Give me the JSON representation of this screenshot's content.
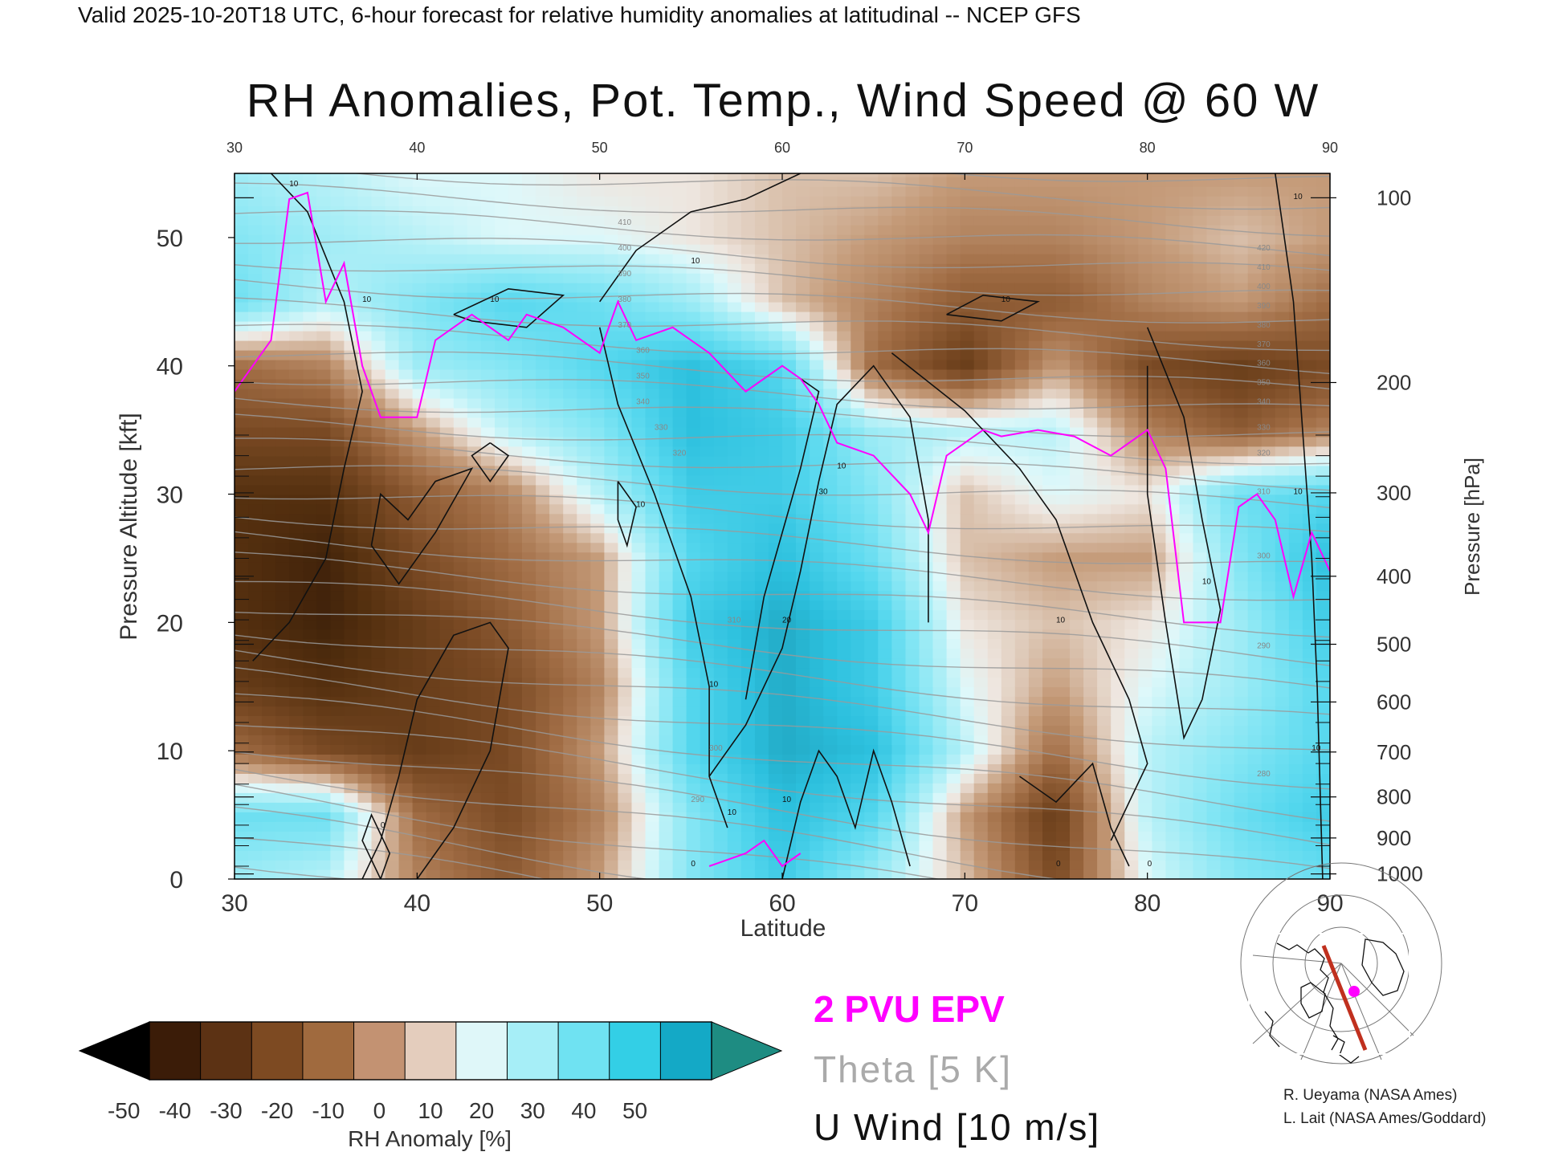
{
  "header": {
    "valid_line": "Valid 2025-10-20T18 UTC, 6-hour forecast for relative humidity anomalies at latitudinal -- NCEP GFS"
  },
  "chart_data": {
    "type": "heatmap",
    "title": "RH Anomalies, Pot. Temp., Wind Speed @ 60 W",
    "xlabel": "Latitude",
    "ylabel_left": "Pressure Altitude [kft]",
    "ylabel_right": "Pressure [hPa]",
    "xlim": [
      30,
      90
    ],
    "ylim": [
      0,
      55
    ],
    "x_ticks_bottom": [
      "30",
      "40",
      "50",
      "60",
      "70",
      "80",
      "90"
    ],
    "x_ticks_top": [
      "30",
      "40",
      "50",
      "60",
      "70",
      "80",
      "90"
    ],
    "y_ticks_left": [
      "0",
      "10",
      "20",
      "30",
      "40",
      "50"
    ],
    "pressure_ticks": [
      {
        "label": "100",
        "kft": 53.1
      },
      {
        "label": "200",
        "kft": 38.7
      },
      {
        "label": "300",
        "kft": 30.1
      },
      {
        "label": "400",
        "kft": 23.6
      },
      {
        "label": "500",
        "kft": 18.3
      },
      {
        "label": "600",
        "kft": 13.8
      },
      {
        "label": "700",
        "kft": 9.9
      },
      {
        "label": "800",
        "kft": 6.4
      },
      {
        "label": "900",
        "kft": 3.2
      },
      {
        "label": "1000",
        "kft": 0.4
      }
    ],
    "colorbar": {
      "label": "RH Anomaly [%]",
      "ticks": [
        "-50",
        "-40",
        "-30",
        "-20",
        "-10",
        "0",
        "10",
        "20",
        "30",
        "40",
        "50"
      ],
      "colors": [
        "#3b1c08",
        "#5c3214",
        "#7d4a22",
        "#a06a3e",
        "#c39272",
        "#e4cdbd",
        "#dff7f9",
        "#a6eef7",
        "#6fe2f2",
        "#33cfe6",
        "#14a9c6"
      ],
      "extend_low_color": "#000000",
      "extend_high_color": "#1e8c82"
    },
    "legend": {
      "epv": "2 PVU EPV",
      "theta": "Theta [5 K]",
      "wind": "U Wind [10 m/s]",
      "epv_color": "#ff00ff",
      "theta_color": "#aaaaaa",
      "wind_color": "#111111"
    },
    "rh_anomaly_grid": {
      "lat": [
        30,
        35,
        40,
        45,
        50,
        55,
        60,
        65,
        70,
        75,
        80,
        85,
        90
      ],
      "alt_kft": [
        0,
        5,
        10,
        15,
        20,
        25,
        30,
        35,
        40,
        45,
        50,
        55
      ],
      "values": [
        [
          15,
          10,
          -15,
          -25,
          -10,
          20,
          35,
          15,
          -5,
          -30,
          5,
          20,
          25
        ],
        [
          25,
          25,
          -20,
          -30,
          -15,
          20,
          40,
          30,
          -10,
          -35,
          10,
          25,
          35
        ],
        [
          -20,
          -30,
          -35,
          -30,
          -10,
          30,
          45,
          40,
          10,
          -20,
          10,
          20,
          30
        ],
        [
          -35,
          -40,
          -35,
          -30,
          -15,
          30,
          45,
          35,
          5,
          -10,
          5,
          15,
          30
        ],
        [
          -40,
          -45,
          -35,
          -25,
          -10,
          35,
          45,
          35,
          0,
          -5,
          0,
          15,
          35
        ],
        [
          -40,
          -45,
          -30,
          -20,
          -10,
          30,
          40,
          25,
          -5,
          -10,
          -10,
          20,
          40
        ],
        [
          -40,
          -40,
          -25,
          -15,
          10,
          35,
          35,
          20,
          -5,
          5,
          0,
          25,
          30
        ],
        [
          -30,
          -30,
          -10,
          10,
          20,
          40,
          35,
          15,
          10,
          10,
          -15,
          -25,
          -15
        ],
        [
          -20,
          -15,
          15,
          20,
          30,
          40,
          30,
          -20,
          -35,
          -10,
          -30,
          -35,
          -30
        ],
        [
          25,
          10,
          20,
          30,
          25,
          15,
          -5,
          -15,
          -25,
          -25,
          -15,
          -10,
          -20
        ],
        [
          20,
          15,
          10,
          5,
          5,
          0,
          -5,
          -10,
          -15,
          -15,
          -10,
          -5,
          -10
        ],
        [
          15,
          10,
          5,
          5,
          0,
          0,
          -5,
          -5,
          -10,
          -10,
          -10,
          -10,
          -10
        ]
      ]
    },
    "theta_labels": [
      "410",
      "400",
      "390",
      "380",
      "370",
      "360",
      "350",
      "340",
      "330",
      "320",
      "310",
      "300",
      "290",
      "420",
      "410",
      "400",
      "390",
      "380",
      "370",
      "360",
      "350",
      "340",
      "330",
      "320",
      "310",
      "300",
      "290",
      "280",
      "270"
    ],
    "wind_labels": [
      "10",
      "10",
      "10",
      "10",
      "10",
      "10",
      "10",
      "10",
      "10",
      "10",
      "10",
      "10",
      "20",
      "30",
      "10",
      "0",
      "0",
      "0",
      "10",
      "0",
      "10"
    ]
  },
  "inset_map": {
    "section_line_color": "#c0301e",
    "marker_color": "#ff00ff"
  },
  "credits": {
    "line1": "R. Ueyama (NASA Ames)",
    "line2": "L. Lait (NASA Ames/Goddard)"
  }
}
